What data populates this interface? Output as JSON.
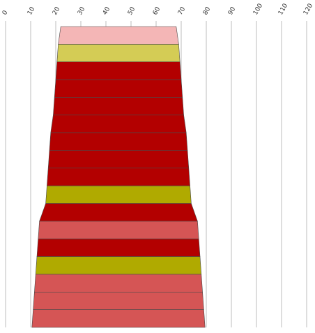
{
  "chart_data": {
    "type": "bar",
    "orientation": "horizontal-centered-funnel",
    "title": "",
    "xlabel": "",
    "ylabel": "",
    "xlim": [
      0,
      120
    ],
    "x_ticks": [
      0,
      10,
      20,
      30,
      40,
      50,
      60,
      70,
      80,
      90,
      100,
      110,
      120
    ],
    "grid": true,
    "legend": "none",
    "center": 45,
    "segments": [
      {
        "index": 1,
        "width": 46,
        "color": "#f4b6b6"
      },
      {
        "index": 2,
        "width": 48,
        "color": "#d4cc55"
      },
      {
        "index": 3,
        "width": 49,
        "color": "#b30000"
      },
      {
        "index": 4,
        "width": 50,
        "color": "#b30000"
      },
      {
        "index": 5,
        "width": 51,
        "color": "#b30000"
      },
      {
        "index": 6,
        "width": 52,
        "color": "#b30000"
      },
      {
        "index": 7,
        "width": 54,
        "color": "#b30000"
      },
      {
        "index": 8,
        "width": 55,
        "color": "#b30000"
      },
      {
        "index": 9,
        "width": 56,
        "color": "#b30000"
      },
      {
        "index": 10,
        "width": 57,
        "color": "#b0aa00"
      },
      {
        "index": 11,
        "width": 58,
        "color": "#b30000"
      },
      {
        "index": 12,
        "width": 63,
        "color": "#d55555"
      },
      {
        "index": 13,
        "width": 64,
        "color": "#b30000"
      },
      {
        "index": 14,
        "width": 65,
        "color": "#b0aa00"
      },
      {
        "index": 15,
        "width": 66,
        "color": "#d55555"
      },
      {
        "index": 16,
        "width": 67,
        "color": "#d55555"
      },
      {
        "index": 17,
        "width": 68,
        "color": "#d55555"
      }
    ]
  }
}
